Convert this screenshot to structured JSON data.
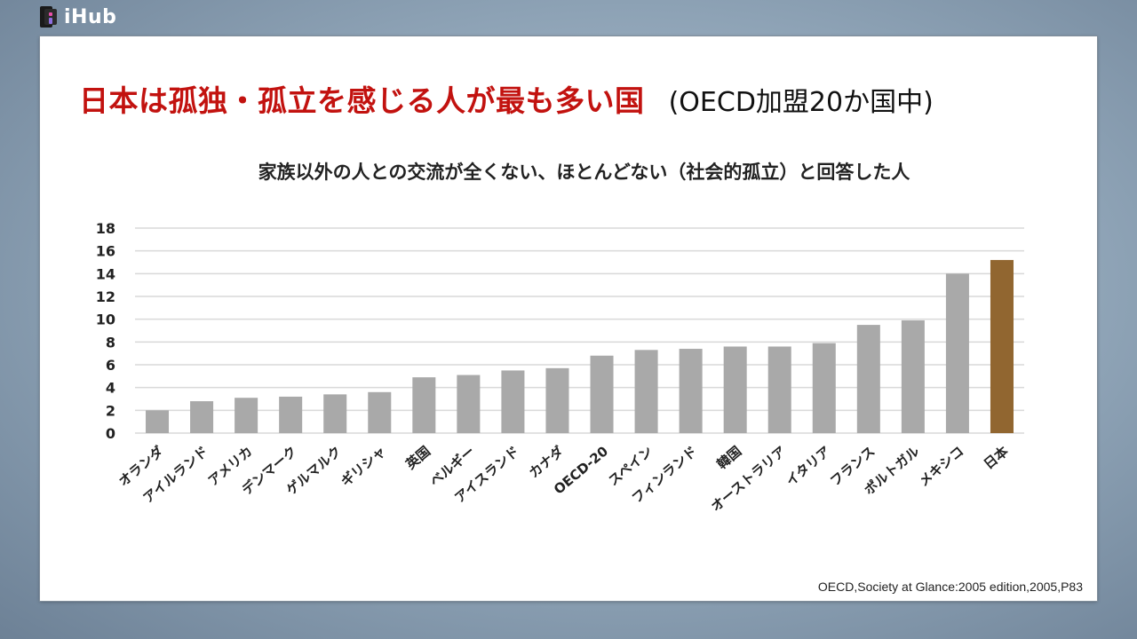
{
  "brand": {
    "name": "iHub",
    "logo_icon": "ihub-logo-icon"
  },
  "slide": {
    "headline": "日本は孤独・孤立を感じる人が最も多い国",
    "headline_note": "(OECD加盟20か国中)",
    "source": "OECD,Society at Glance:2005 edition,2005,P83"
  },
  "colors": {
    "bar": "#a9a9a9",
    "highlight": "#916630",
    "headline": "#c2120f",
    "grid": "#d9d9d9"
  },
  "chart_data": {
    "type": "bar",
    "title": "家族以外の人との交流が全くない、ほとんどない（社会的孤立）と回答した人",
    "xlabel": "",
    "ylabel": "",
    "ylim": [
      0,
      18
    ],
    "yticks": [
      0,
      2,
      4,
      6,
      8,
      10,
      12,
      14,
      16,
      18
    ],
    "grid": true,
    "highlight_category": "日本",
    "categories": [
      "オランダ",
      "アイルランド",
      "アメリカ",
      "デンマーク",
      "ゲルマルク",
      "ギリシャ",
      "英国",
      "ベルギー",
      "アイスランド",
      "カナダ",
      "OECD-20",
      "スペイン",
      "フィンランド",
      "韓国",
      "オーストラリア",
      "イタリア",
      "フランス",
      "ポルトガル",
      "メキシコ",
      "日本"
    ],
    "values": [
      2.0,
      2.8,
      3.1,
      3.2,
      3.4,
      3.6,
      4.9,
      5.1,
      5.5,
      5.7,
      6.8,
      7.3,
      7.4,
      7.6,
      7.6,
      7.9,
      9.5,
      9.9,
      14.0,
      15.2
    ]
  }
}
